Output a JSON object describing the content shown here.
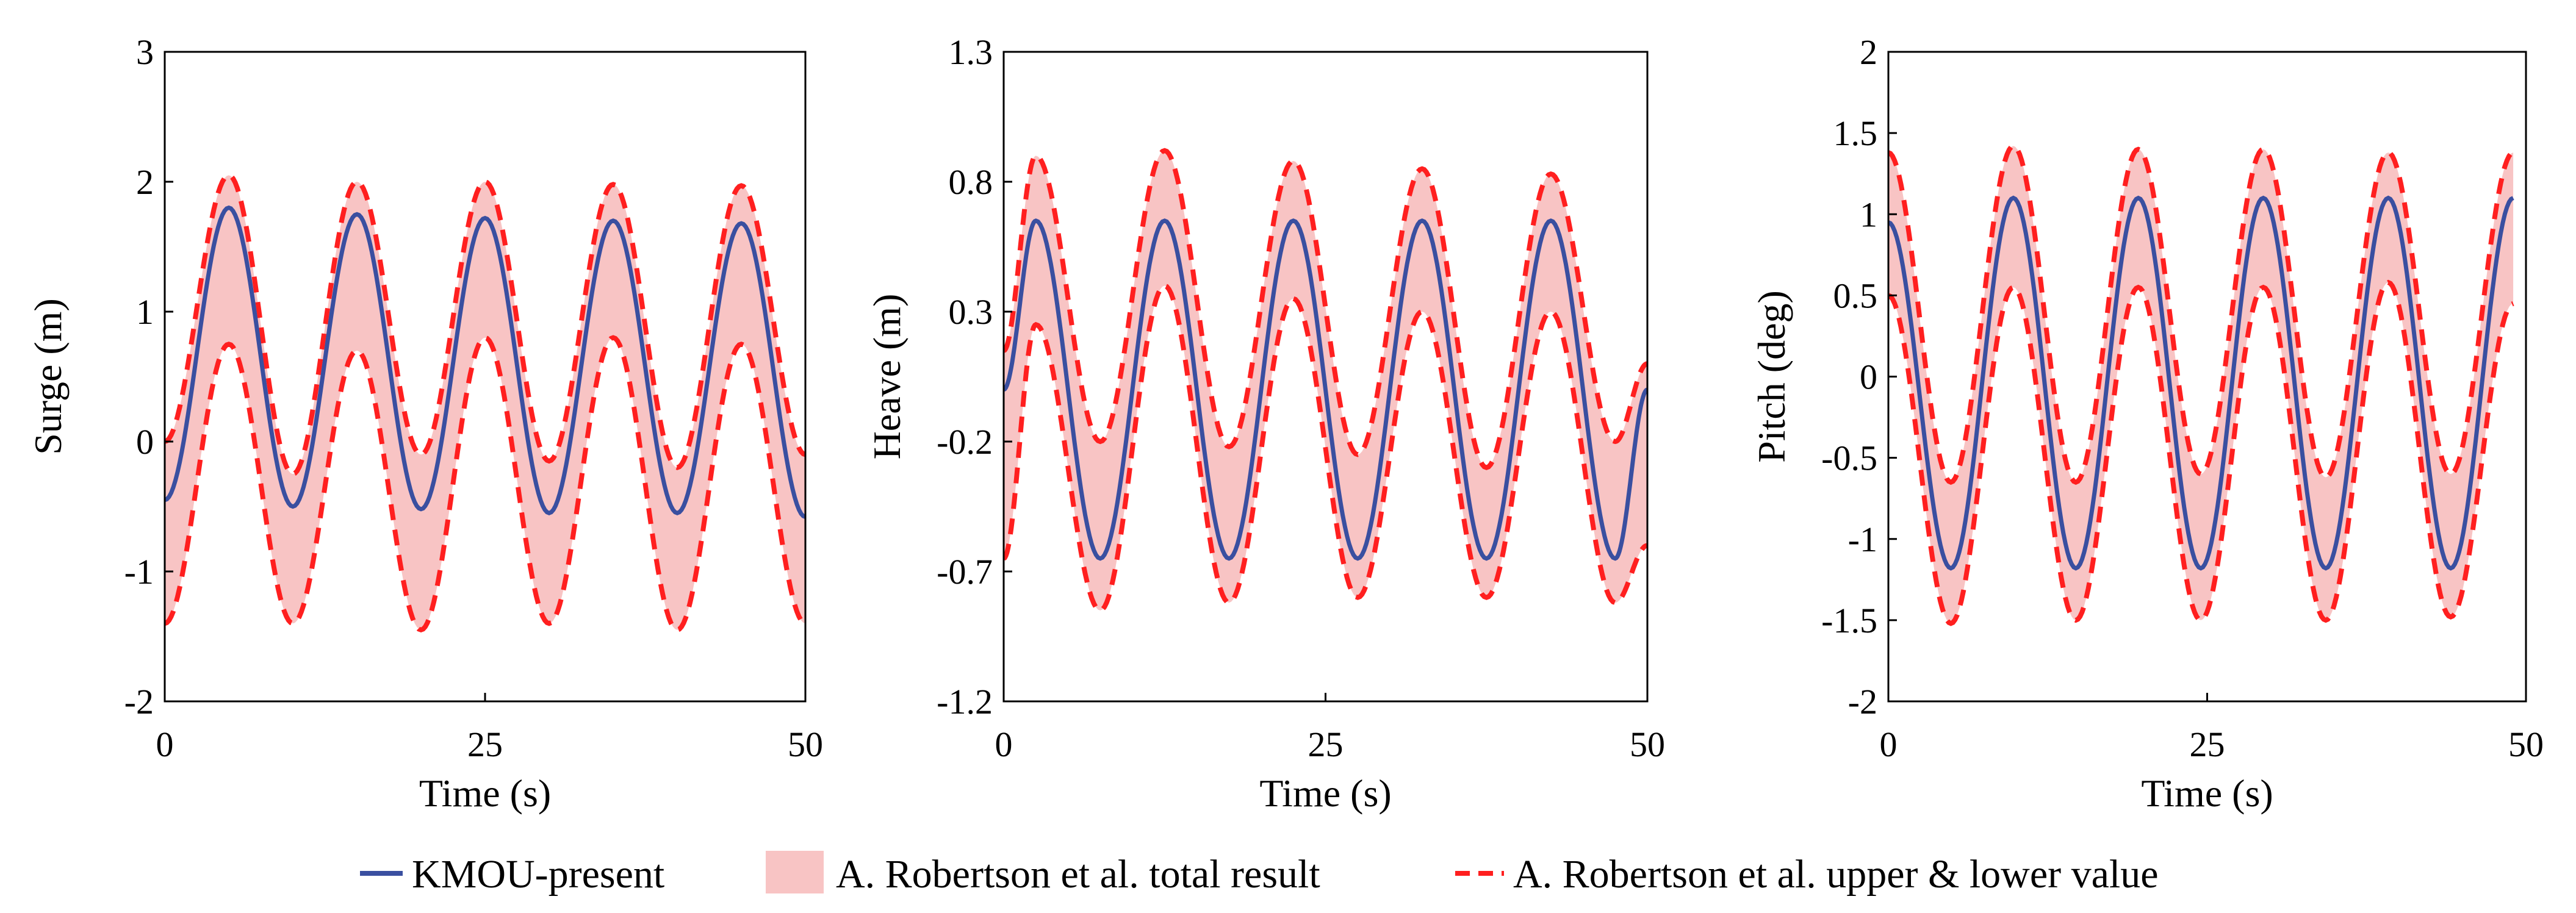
{
  "chart_data": [
    {
      "type": "line",
      "xlabel": "Time (s)",
      "ylabel": "Surge (m)",
      "xlim": [
        0,
        50
      ],
      "ylim": [
        -2,
        3
      ],
      "xticks": [
        0,
        25,
        50
      ],
      "xtick_labels": [
        "0",
        "25",
        "50"
      ],
      "yticks": [
        -2,
        -1,
        0,
        1,
        2,
        3
      ],
      "ytick_labels": [
        "-2",
        "-1",
        "0",
        "1",
        "2",
        "3"
      ],
      "grid": false,
      "series": [
        {
          "name": "KMOU-present",
          "kind": "line",
          "x": [
            0,
            5,
            10,
            15,
            20,
            25,
            30,
            35,
            40,
            45,
            50
          ],
          "values": [
            -0.45,
            1.8,
            -0.5,
            1.75,
            -0.52,
            1.72,
            -0.55,
            1.7,
            -0.55,
            1.68,
            -0.58
          ]
        },
        {
          "name": "A. Robertson et al. upper value",
          "kind": "dashed",
          "x": [
            0,
            5,
            10,
            15,
            20,
            25,
            30,
            35,
            40,
            45,
            50
          ],
          "values": [
            0.0,
            2.05,
            -0.25,
            2.0,
            -0.1,
            2.0,
            -0.15,
            1.98,
            -0.2,
            1.97,
            -0.1
          ]
        },
        {
          "name": "A. Robertson et al. lower value",
          "kind": "dashed",
          "x": [
            0,
            5,
            10,
            15,
            20,
            25,
            30,
            35,
            40,
            45,
            50
          ],
          "values": [
            -1.4,
            0.75,
            -1.4,
            0.7,
            -1.45,
            0.8,
            -1.4,
            0.8,
            -1.45,
            0.75,
            -1.4
          ]
        }
      ]
    },
    {
      "type": "line",
      "xlabel": "Time (s)",
      "ylabel": "Heave (m)",
      "xlim": [
        0,
        50
      ],
      "ylim": [
        -1.2,
        1.3
      ],
      "xticks": [
        0,
        25,
        50
      ],
      "xtick_labels": [
        "0",
        "25",
        "50"
      ],
      "yticks": [
        -1.2,
        -0.7,
        -0.2,
        0.3,
        0.8,
        1.3
      ],
      "ytick_labels": [
        "-1.2",
        "-0.7",
        "-0.2",
        "0.3",
        "0.8",
        "1.3"
      ],
      "grid": false,
      "series": [
        {
          "name": "KMOU-present",
          "kind": "line",
          "x": [
            0,
            2.5,
            7.5,
            12.5,
            17.5,
            22.5,
            27.5,
            32.5,
            37.5,
            42.5,
            47.5,
            50
          ],
          "values": [
            0.0,
            0.65,
            -0.65,
            0.65,
            -0.65,
            0.65,
            -0.65,
            0.65,
            -0.65,
            0.65,
            -0.65,
            0.0
          ]
        },
        {
          "name": "A. Robertson et al. upper value",
          "kind": "dashed",
          "x": [
            0,
            2.5,
            7.5,
            12.5,
            17.5,
            22.5,
            27.5,
            32.5,
            37.5,
            42.5,
            47.5,
            50
          ],
          "values": [
            0.15,
            0.9,
            -0.2,
            0.92,
            -0.22,
            0.88,
            -0.25,
            0.85,
            -0.3,
            0.83,
            -0.2,
            0.1
          ]
        },
        {
          "name": "A. Robertson et al. lower value",
          "kind": "dashed",
          "x": [
            0,
            2.5,
            7.5,
            12.5,
            17.5,
            22.5,
            27.5,
            32.5,
            37.5,
            42.5,
            47.5,
            50
          ],
          "values": [
            -0.65,
            0.25,
            -0.85,
            0.4,
            -0.82,
            0.35,
            -0.8,
            0.3,
            -0.8,
            0.3,
            -0.82,
            -0.6
          ]
        }
      ]
    },
    {
      "type": "line",
      "xlabel": "Time (s)",
      "ylabel": "Pitch (deg)",
      "xlim": [
        0,
        50
      ],
      "ylim": [
        -2,
        2
      ],
      "xticks": [
        0,
        25,
        50
      ],
      "xtick_labels": [
        "0",
        "25",
        "50"
      ],
      "yticks": [
        -2,
        -1.5,
        -1,
        -0.5,
        0,
        0.5,
        1,
        1.5,
        2
      ],
      "ytick_labels": [
        "-2",
        "-1.5",
        "-1",
        "-0.5",
        "0",
        "0.5",
        "1",
        "1.5",
        "2"
      ],
      "grid": false,
      "series": [
        {
          "name": "KMOU-present",
          "kind": "line",
          "x": [
            0,
            4.9,
            9.8,
            14.7,
            19.6,
            24.5,
            29.4,
            34.3,
            39.2,
            44.1,
            49
          ],
          "values": [
            0.95,
            -1.18,
            1.1,
            -1.18,
            1.1,
            -1.18,
            1.1,
            -1.18,
            1.1,
            -1.18,
            1.1
          ]
        },
        {
          "name": "A. Robertson et al. upper value",
          "kind": "dashed",
          "x": [
            0,
            4.9,
            9.8,
            14.7,
            19.6,
            24.5,
            29.4,
            34.3,
            39.2,
            44.1,
            49
          ],
          "values": [
            1.38,
            -0.65,
            1.42,
            -0.65,
            1.4,
            -0.6,
            1.4,
            -0.62,
            1.38,
            -0.6,
            1.38
          ]
        },
        {
          "name": "A. Robertson et al. lower value",
          "kind": "dashed",
          "x": [
            0,
            4.9,
            9.8,
            14.7,
            19.6,
            24.5,
            29.4,
            34.3,
            39.2,
            44.1,
            49
          ],
          "values": [
            0.5,
            -1.52,
            0.55,
            -1.5,
            0.55,
            -1.5,
            0.55,
            -1.5,
            0.58,
            -1.48,
            0.45
          ]
        }
      ]
    }
  ],
  "legend": {
    "placement": "bottom-center",
    "items": [
      {
        "label": "KMOU-present",
        "style": "line",
        "color": "#3a4fa0"
      },
      {
        "label": "A. Robertson et al. total result",
        "style": "fill",
        "color": "#f8c4c4"
      },
      {
        "label": "A. Robertson et al. upper & lower value",
        "style": "dashed",
        "color": "#ff1f1f"
      }
    ]
  },
  "colors": {
    "present_line": "#3a4fa0",
    "band_fill": "#f8c4c4",
    "bound_line": "#ff1f1f",
    "axis": "#000000"
  }
}
